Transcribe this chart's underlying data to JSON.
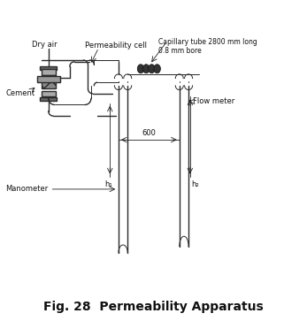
{
  "title": "Fig. 28  Permeability Apparatus",
  "title_fontsize": 10,
  "bg_color": "#ffffff",
  "line_color": "#2a2a2a",
  "text_color": "#111111",
  "labels": {
    "dry_air": "Dry air",
    "cement": "Cement",
    "permeability_cell": "Permeability cell",
    "capillary_tube": "Capillary tube 2800 mm long\n0.8 mm bore",
    "flow_meter": "Flow meter",
    "manometer": "Manometer",
    "h1": "h₁",
    "h2": "h₂",
    "distance": "600"
  }
}
